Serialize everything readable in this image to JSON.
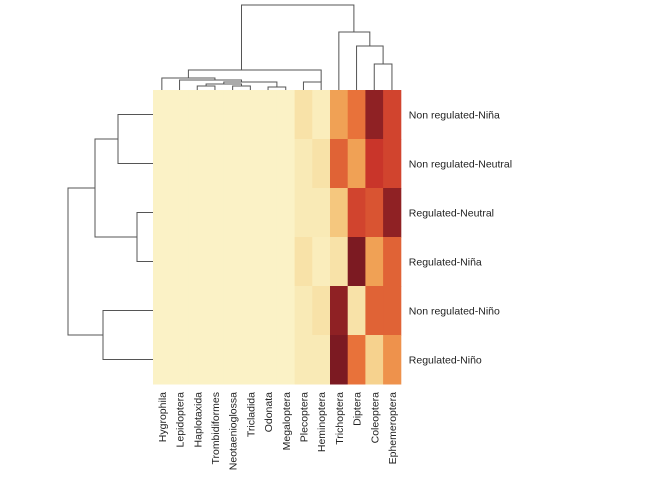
{
  "chart_data": {
    "type": "heatmap",
    "title": "",
    "xlabel": "",
    "ylabel": "",
    "rows": [
      "Non regulated-Niña",
      "Non regulated-Neutral",
      "Regulated-Neutral",
      "Regulated-Niña",
      "Non regulated-Niño",
      "Regulated-Niño"
    ],
    "columns": [
      "Hygrophila",
      "Lepidoptera",
      "Haplotaxida",
      "Trombidiformes",
      "Neotaenioglossa",
      "Tricladida",
      "Odonata",
      "Megaloptera",
      "Plecoptera",
      "Heminoptera",
      "Trichoptera",
      "Diptera",
      "Coleoptera",
      "Ephemeroptera"
    ],
    "values": [
      [
        0,
        0,
        0,
        0,
        0,
        0,
        0,
        0,
        0.15,
        0.05,
        0.45,
        0.6,
        0.95,
        0.75
      ],
      [
        0,
        0,
        0,
        0,
        0,
        0,
        0,
        0,
        0.08,
        0.15,
        0.65,
        0.45,
        0.8,
        0.75
      ],
      [
        0,
        0,
        0,
        0,
        0,
        0,
        0,
        0,
        0.08,
        0.08,
        0.3,
        0.75,
        0.7,
        0.95
      ],
      [
        0,
        0,
        0,
        0,
        0,
        0,
        0,
        0,
        0.15,
        0.05,
        0.15,
        1.0,
        0.45,
        0.65
      ],
      [
        0,
        0,
        0,
        0,
        0,
        0,
        0,
        0,
        0.08,
        0.15,
        0.95,
        0.15,
        0.65,
        0.65
      ],
      [
        0,
        0,
        0,
        0,
        0,
        0,
        0,
        0,
        0.08,
        0.08,
        1.0,
        0.6,
        0.25,
        0.5
      ]
    ],
    "colorscale": [
      "#fbf2c6",
      "#f7dd9e",
      "#f3b15e",
      "#e8723a",
      "#c9352a",
      "#7c1a22"
    ],
    "legend": "none",
    "grid": false,
    "dendrograms": [
      "rows",
      "columns"
    ]
  }
}
